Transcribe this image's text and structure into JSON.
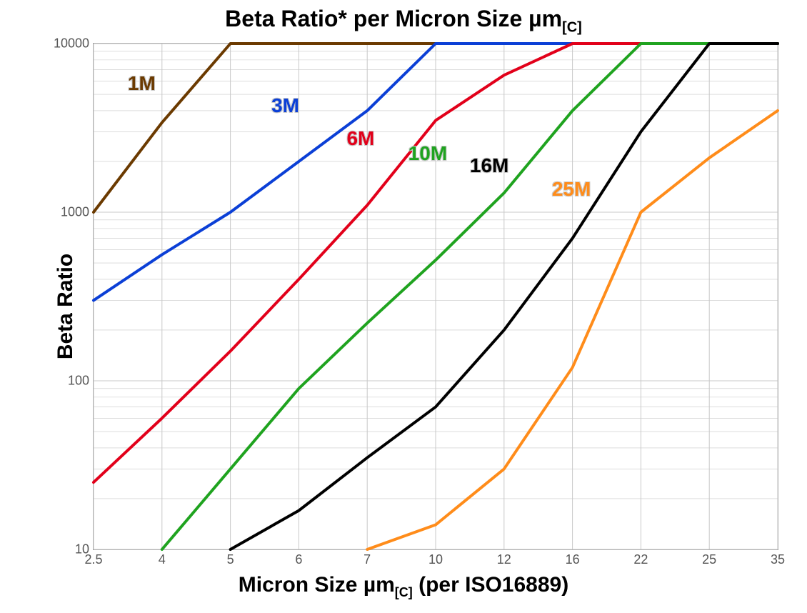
{
  "chart": {
    "type": "line",
    "title_html": "Beta Ratio* per Micron Size µm<sub>[C]</sub>",
    "xlabel_html": "Micron Size µm<sub>[C]</sub> (per ISO16889)",
    "ylabel": "Beta Ratio",
    "title_fontsize": 32,
    "label_fontsize": 30,
    "tick_fontsize": 18,
    "background_color": "#ffffff",
    "grid_color": "#c8c8c8",
    "axis_color": "#999999",
    "line_width": 4,
    "x_scale": "ordinal",
    "y_scale": "log",
    "x_ticks": [
      "2.5",
      "4",
      "5",
      "6",
      "7",
      "10",
      "12",
      "16",
      "22",
      "25",
      "35"
    ],
    "y_ticks": [
      10,
      100,
      1000,
      10000
    ],
    "ylim": [
      10,
      10000
    ],
    "series": [
      {
        "name": "1M",
        "color": "#6b3a00",
        "label_color": "#6b3a00",
        "label_pos": {
          "xi": 0.5,
          "y": 6800
        },
        "points": [
          {
            "xi": 0,
            "y": 1000
          },
          {
            "xi": 1,
            "y": 3400
          },
          {
            "xi": 2,
            "y": 10000
          },
          {
            "xi": 10,
            "y": 10000
          }
        ]
      },
      {
        "name": "3M",
        "color": "#0b3fd6",
        "label_color": "#0b3fd6",
        "label_pos": {
          "xi": 2.6,
          "y": 5000
        },
        "points": [
          {
            "xi": 0,
            "y": 300
          },
          {
            "xi": 1,
            "y": 560
          },
          {
            "xi": 2,
            "y": 1000
          },
          {
            "xi": 3,
            "y": 2000
          },
          {
            "xi": 4,
            "y": 4000
          },
          {
            "xi": 5,
            "y": 10000
          },
          {
            "xi": 10,
            "y": 10000
          }
        ]
      },
      {
        "name": "6M",
        "color": "#e2001a",
        "label_color": "#e2001a",
        "label_pos": {
          "xi": 3.7,
          "y": 3200
        },
        "points": [
          {
            "xi": 0,
            "y": 25
          },
          {
            "xi": 1,
            "y": 60
          },
          {
            "xi": 2,
            "y": 150
          },
          {
            "xi": 3,
            "y": 400
          },
          {
            "xi": 4,
            "y": 1100
          },
          {
            "xi": 5,
            "y": 3500
          },
          {
            "xi": 6,
            "y": 6500
          },
          {
            "xi": 7,
            "y": 10000
          },
          {
            "xi": 10,
            "y": 10000
          }
        ]
      },
      {
        "name": "10M",
        "color": "#1fa31f",
        "label_color": "#1fa31f",
        "label_pos": {
          "xi": 4.6,
          "y": 2600
        },
        "points": [
          {
            "xi": 1,
            "y": 10
          },
          {
            "xi": 2,
            "y": 30
          },
          {
            "xi": 3,
            "y": 90
          },
          {
            "xi": 4,
            "y": 220
          },
          {
            "xi": 5,
            "y": 520
          },
          {
            "xi": 6,
            "y": 1300
          },
          {
            "xi": 7,
            "y": 4000
          },
          {
            "xi": 8,
            "y": 10000
          },
          {
            "xi": 10,
            "y": 10000
          }
        ]
      },
      {
        "name": "16M",
        "color": "#000000",
        "label_color": "#000000",
        "label_pos": {
          "xi": 5.5,
          "y": 2200
        },
        "points": [
          {
            "xi": 2,
            "y": 10
          },
          {
            "xi": 3,
            "y": 17
          },
          {
            "xi": 4,
            "y": 35
          },
          {
            "xi": 5,
            "y": 70
          },
          {
            "xi": 6,
            "y": 200
          },
          {
            "xi": 7,
            "y": 700
          },
          {
            "xi": 8,
            "y": 3000
          },
          {
            "xi": 9,
            "y": 10000
          },
          {
            "xi": 10,
            "y": 10000
          }
        ]
      },
      {
        "name": "25M",
        "color": "#ff8c1a",
        "label_color": "#ff8c1a",
        "label_pos": {
          "xi": 6.7,
          "y": 1600
        },
        "points": [
          {
            "xi": 4,
            "y": 10
          },
          {
            "xi": 5,
            "y": 14
          },
          {
            "xi": 6,
            "y": 30
          },
          {
            "xi": 7,
            "y": 120
          },
          {
            "xi": 8,
            "y": 1000
          },
          {
            "xi": 9,
            "y": 2100
          },
          {
            "xi": 10,
            "y": 4000
          }
        ]
      }
    ]
  }
}
